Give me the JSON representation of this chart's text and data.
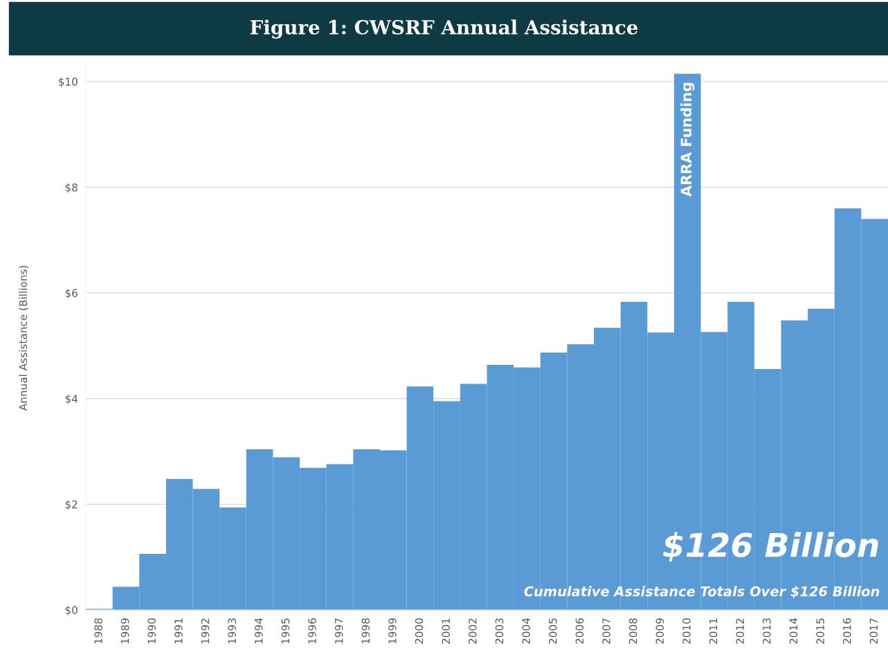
{
  "chart_data": {
    "type": "bar",
    "title": "Figure 1: CWSRF Annual Assistance",
    "ylabel": "Annual Assistance (Billions)",
    "categories": [
      "1988",
      "1989",
      "1990",
      "1991",
      "1992",
      "1993",
      "1994",
      "1995",
      "1996",
      "1997",
      "1998",
      "1999",
      "2000",
      "2001",
      "2002",
      "2003",
      "2004",
      "2005",
      "2006",
      "2007",
      "2008",
      "2009",
      "2010",
      "2011",
      "2012",
      "2013",
      "2014",
      "2015",
      "2016",
      "2017"
    ],
    "values": [
      0.02,
      0.44,
      1.06,
      2.48,
      2.29,
      1.94,
      3.04,
      2.89,
      2.69,
      2.76,
      3.04,
      3.02,
      4.23,
      3.95,
      4.28,
      4.64,
      4.59,
      4.87,
      5.03,
      5.34,
      5.83,
      5.25,
      10.15,
      5.26,
      5.83,
      4.56,
      5.48,
      5.7,
      7.6,
      7.4
    ],
    "color": "#5b9bd5",
    "ylim": [
      0,
      10.3
    ],
    "yticks": [
      {
        "value": 0,
        "label": "$0"
      },
      {
        "value": 2,
        "label": "$2"
      },
      {
        "value": 4,
        "label": "$4"
      },
      {
        "value": 6,
        "label": "$6"
      },
      {
        "value": 8,
        "label": "$8"
      },
      {
        "value": 10,
        "label": "$10"
      }
    ],
    "grid": "y",
    "annotations": [
      {
        "text": "ARRA Funding",
        "x": "2010",
        "y": 10.15
      },
      "$126 Billion",
      "Cumulative Assistance Totals Over $126 Billion"
    ]
  }
}
